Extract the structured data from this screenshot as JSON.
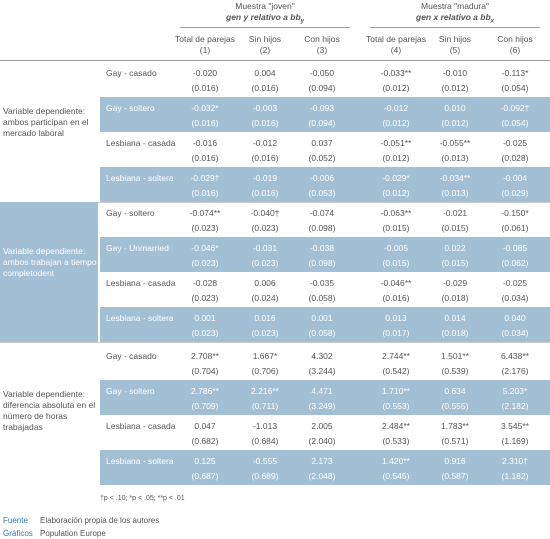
{
  "header": {
    "groups": [
      {
        "title": "Muestra \"joven\"",
        "subtitle": "gen y relativo a bb",
        "subtitle_sub": "y"
      },
      {
        "title": "Muestra \"madura\"",
        "subtitle": "gen x relativo a bb",
        "subtitle_sub": "x"
      }
    ],
    "columns": [
      {
        "name": "Total de parejas",
        "num": "(1)"
      },
      {
        "name": "Sin hijos",
        "num": "(2)"
      },
      {
        "name": "Con hijos",
        "num": "(3)"
      },
      {
        "name": "Total de parejas",
        "num": "(4)"
      },
      {
        "name": "Sin hijos",
        "num": "(5)"
      },
      {
        "name": "Con hijos",
        "num": "(6)"
      }
    ]
  },
  "sections": [
    {
      "label": "Variable dependiente: ambos participan en el mercado laboral",
      "rows": [
        {
          "label": "Gay - casado",
          "values": [
            "-0.020",
            "0.004",
            "-0.050",
            "-0.033**",
            "-0.010",
            "-0.113*"
          ],
          "se": [
            "(0.016)",
            "(0.016)",
            "(0.094)",
            "(0.012)",
            "(0.012)",
            "(0.054)"
          ]
        },
        {
          "label": "Gay - soltero",
          "values": [
            "-0.032*",
            "-0.003",
            "-0.093",
            "-0.012",
            "0.010",
            "-0.092†"
          ],
          "se": [
            "(0.016)",
            "(0.016)",
            "(0.094)",
            "(0.012)",
            "(0.012)",
            "(0.054)"
          ]
        },
        {
          "label": "Lesbiana - casada",
          "values": [
            "-0.016",
            "-0.012",
            "0.037",
            "-0.051**",
            "-0.055**",
            "-0.025"
          ],
          "se": [
            "(0.016)",
            "(0.016)",
            "(0.052)",
            "(0.012)",
            "(0.013)",
            "(0.028)"
          ]
        },
        {
          "label": "Lesbiana - soltera",
          "values": [
            "-0.029†",
            "-0.019",
            "-0.006",
            "-0.029*",
            "-0.034**",
            "-0.004"
          ],
          "se": [
            "(0.016)",
            "(0.016)",
            "(0.053)",
            "(0.012)",
            "(0.013)",
            "(0.029)"
          ]
        }
      ]
    },
    {
      "label": "Variable dependiente: ambos trabajan a tiempo completodent",
      "rows": [
        {
          "label": "Gay - soltero",
          "values": [
            "-0.074**",
            "-0.040†",
            "-0.074",
            "-0.063**",
            "-0.021",
            "-0.150*"
          ],
          "se": [
            "(0.023)",
            "(0.023)",
            "(0.098)",
            "(0.015)",
            "(0.015)",
            "(0.061)"
          ]
        },
        {
          "label": "Gay - Unmarried",
          "values": [
            "-0.046*",
            "-0.031",
            "-0.038",
            "-0.005",
            "0.022",
            "-0.085"
          ],
          "se": [
            "(0.023)",
            "(0.023)",
            "(0.098)",
            "(0.015)",
            "(0.015)",
            "(0.062)"
          ]
        },
        {
          "label": "Lesbiana - casada",
          "values": [
            "-0.028",
            "0.006",
            "-0.035",
            "-0.046**",
            "-0.029",
            "-0.025"
          ],
          "se": [
            "(0.023)",
            "(0.024)",
            "(0.058)",
            "(0.016)",
            "(0.018)",
            "(0.034)"
          ]
        },
        {
          "label": "Lesbiana - soltera",
          "values": [
            "0.001",
            "0.016",
            "0.001",
            "0.013",
            "0.014",
            "0.040"
          ],
          "se": [
            "(0.023)",
            "(0.023)",
            "(0.058)",
            "(0.017)",
            "(0.018)",
            "(0.034)"
          ]
        }
      ]
    },
    {
      "label": "Variable dependiente: diferencia absoluta en el número de horas trabajadas",
      "rows": [
        {
          "label": "Gay - casado",
          "values": [
            "2.708**",
            "1.667*",
            "4.302",
            "2.744**",
            "1.501**",
            "6.438**"
          ],
          "se": [
            "(0.704)",
            "(0.706)",
            "(3.244)",
            "(0.542)",
            "(0.539)",
            "(2.176)"
          ]
        },
        {
          "label": "Gay - soltero",
          "values": [
            "2.786**",
            "2.216**",
            "4.471",
            "1.710**",
            "0.634",
            "5.203*"
          ],
          "se": [
            "(0.709)",
            "(0.711)",
            "(3.249)",
            "(0.553)",
            "(0.555)",
            "(2.182)"
          ]
        },
        {
          "label": "Lesbiana - casada",
          "values": [
            "0.047",
            "-1.013",
            "2.005",
            "2.484**",
            "1.783**",
            "3.545**"
          ],
          "se": [
            "(0.682)",
            "(0.684)",
            "(2.040)",
            "(0.533)",
            "(0.571)",
            "(1.169)"
          ]
        },
        {
          "label": "Lesbiana - soltera",
          "values": [
            "0.125",
            "-0.555",
            "2.173",
            "1.420**",
            "0.916",
            "2.310†"
          ],
          "se": [
            "(0.687)",
            "(0.689)",
            "(2.048)",
            "(0.545)",
            "(0.587)",
            "(1.182)"
          ]
        }
      ]
    }
  ],
  "footnote": "†p < .10; *p < .05; **p < .01",
  "source": {
    "label": "Fuente",
    "text": "Elaboración propia de los autores"
  },
  "graphics": {
    "label": "Gráficos",
    "text": "Population Europe"
  }
}
